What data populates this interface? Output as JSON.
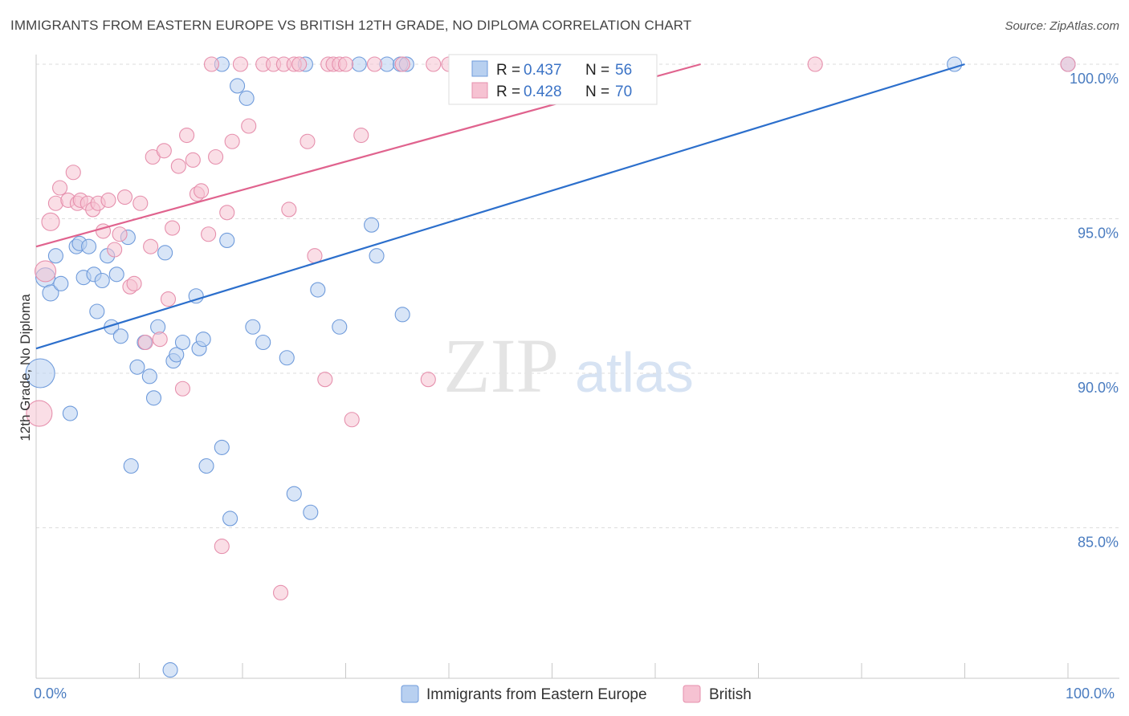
{
  "title": "IMMIGRANTS FROM EASTERN EUROPE VS BRITISH 12TH GRADE, NO DIPLOMA CORRELATION CHART",
  "source": "Source: ZipAtlas.com",
  "watermark": {
    "zip": "ZIP",
    "atlas": "atlas"
  },
  "colors": {
    "blue_fill": "#b8d0f0",
    "blue_stroke": "#6f9bdb",
    "blue_line": "#2c6fcc",
    "pink_fill": "#f6c2d2",
    "pink_stroke": "#e690ad",
    "pink_line": "#e0638e",
    "grid": "#dddddd",
    "tick_text": "#4a7cc0"
  },
  "stats": [
    {
      "r_label": "R =",
      "r_value": "0.437",
      "n_label": "N =",
      "n_value": "56"
    },
    {
      "r_label": "R =",
      "r_value": "0.428",
      "n_label": "N =",
      "n_value": "70"
    }
  ],
  "chart_data": {
    "type": "scatter",
    "title": "IMMIGRANTS FROM EASTERN EUROPE VS BRITISH 12TH GRADE, NO DIPLOMA CORRELATION CHART",
    "xlabel": "",
    "ylabel": "12th Grade, No Diploma",
    "xlim": [
      0,
      100
    ],
    "ylim": [
      80.3,
      100.8
    ],
    "x_tick_labels": [
      "0.0%",
      "100.0%"
    ],
    "y_ticks": [
      100,
      95,
      90,
      85
    ],
    "y_tick_labels": [
      "100.0%",
      "95.0%",
      "90.0%",
      "85.0%"
    ],
    "grid": true,
    "legend_position": "bottom",
    "series": [
      {
        "name": "Immigrants from Eastern Europe",
        "color": "#6f9bdb",
        "r": 0.437,
        "n": 56,
        "trend": {
          "x": [
            0,
            90.0
          ],
          "y": [
            90.8,
            100.0
          ]
        },
        "points": [
          [
            0.4,
            90.0,
            18
          ],
          [
            0.9,
            93.1,
            12
          ],
          [
            1.4,
            92.6,
            10
          ],
          [
            1.9,
            93.8,
            9
          ],
          [
            2.4,
            92.9,
            9
          ],
          [
            3.3,
            88.7,
            9
          ],
          [
            3.9,
            94.1,
            9
          ],
          [
            4.2,
            94.2,
            9
          ],
          [
            4.6,
            93.1,
            9
          ],
          [
            5.1,
            94.1,
            9
          ],
          [
            5.6,
            93.2,
            9
          ],
          [
            5.9,
            92.0,
            9
          ],
          [
            6.4,
            93.0,
            9
          ],
          [
            6.9,
            93.8,
            9
          ],
          [
            7.3,
            91.5,
            9
          ],
          [
            7.8,
            93.2,
            9
          ],
          [
            8.2,
            91.2,
            9
          ],
          [
            8.9,
            94.4,
            9
          ],
          [
            9.2,
            87.0,
            9
          ],
          [
            9.8,
            90.2,
            9
          ],
          [
            10.5,
            91.0,
            9
          ],
          [
            11.0,
            89.9,
            9
          ],
          [
            11.4,
            89.2,
            9
          ],
          [
            11.8,
            91.5,
            9
          ],
          [
            12.5,
            93.9,
            9
          ],
          [
            13.0,
            80.4,
            9
          ],
          [
            13.3,
            90.4,
            9
          ],
          [
            13.6,
            90.6,
            9
          ],
          [
            14.2,
            91.0,
            9
          ],
          [
            15.5,
            92.5,
            9
          ],
          [
            15.8,
            90.8,
            9
          ],
          [
            16.2,
            91.1,
            9
          ],
          [
            16.5,
            87.0,
            9
          ],
          [
            18.0,
            87.6,
            9
          ],
          [
            18.8,
            85.3,
            9
          ],
          [
            18.5,
            94.3,
            9
          ],
          [
            19.5,
            99.3,
            9
          ],
          [
            20.4,
            98.9,
            9
          ],
          [
            21.0,
            91.5,
            9
          ],
          [
            22.0,
            91.0,
            9
          ],
          [
            24.3,
            90.5,
            9
          ],
          [
            25.0,
            86.1,
            9
          ],
          [
            26.1,
            100.0,
            9
          ],
          [
            26.6,
            85.5,
            9
          ],
          [
            27.3,
            92.7,
            9
          ],
          [
            29.4,
            91.5,
            9
          ],
          [
            31.3,
            100.0,
            9
          ],
          [
            32.5,
            94.8,
            9
          ],
          [
            33.0,
            93.8,
            9
          ],
          [
            34.0,
            100.0,
            9
          ],
          [
            35.3,
            100.0,
            9
          ],
          [
            35.9,
            100.0,
            9
          ],
          [
            35.5,
            91.9,
            9
          ],
          [
            18.0,
            100.0,
            9
          ],
          [
            89.0,
            100.0,
            9
          ],
          [
            100.0,
            100.0,
            9
          ]
        ]
      },
      {
        "name": "British",
        "color": "#e690ad",
        "r": 0.428,
        "n": 70,
        "trend": {
          "x": [
            0,
            64.4
          ],
          "y": [
            94.1,
            100.0
          ]
        },
        "points": [
          [
            0.3,
            88.7,
            16
          ],
          [
            0.9,
            93.3,
            13
          ],
          [
            1.4,
            94.9,
            11
          ],
          [
            1.9,
            95.5,
            9
          ],
          [
            2.3,
            96.0,
            9
          ],
          [
            3.1,
            95.6,
            9
          ],
          [
            3.6,
            96.5,
            9
          ],
          [
            4.0,
            95.5,
            9
          ],
          [
            4.3,
            95.6,
            9
          ],
          [
            5.0,
            95.5,
            9
          ],
          [
            5.5,
            95.3,
            9
          ],
          [
            6.0,
            95.5,
            9
          ],
          [
            6.5,
            94.6,
            9
          ],
          [
            7.0,
            95.6,
            9
          ],
          [
            7.6,
            94.0,
            9
          ],
          [
            8.1,
            94.5,
            9
          ],
          [
            8.6,
            95.7,
            9
          ],
          [
            9.1,
            92.8,
            9
          ],
          [
            9.5,
            92.9,
            9
          ],
          [
            10.1,
            95.5,
            9
          ],
          [
            10.6,
            91.0,
            9
          ],
          [
            11.1,
            94.1,
            9
          ],
          [
            11.3,
            97.0,
            9
          ],
          [
            12.0,
            91.1,
            9
          ],
          [
            12.4,
            97.2,
            9
          ],
          [
            12.8,
            92.4,
            9
          ],
          [
            13.2,
            94.7,
            9
          ],
          [
            13.8,
            96.7,
            9
          ],
          [
            14.2,
            89.5,
            9
          ],
          [
            14.6,
            97.7,
            9
          ],
          [
            15.2,
            96.9,
            9
          ],
          [
            15.6,
            95.8,
            9
          ],
          [
            16.0,
            95.9,
            9
          ],
          [
            16.7,
            94.5,
            9
          ],
          [
            17.4,
            97.0,
            9
          ],
          [
            17.0,
            100.0,
            9
          ],
          [
            18.0,
            84.4,
            9
          ],
          [
            18.5,
            95.2,
            9
          ],
          [
            19.0,
            97.5,
            9
          ],
          [
            19.8,
            100.0,
            9
          ],
          [
            20.6,
            98.0,
            9
          ],
          [
            22.0,
            100.0,
            9
          ],
          [
            23.0,
            100.0,
            9
          ],
          [
            23.7,
            82.9,
            9
          ],
          [
            24.0,
            100.0,
            9
          ],
          [
            24.5,
            95.3,
            9
          ],
          [
            25.0,
            100.0,
            9
          ],
          [
            25.5,
            100.0,
            9
          ],
          [
            26.3,
            97.5,
            9
          ],
          [
            27.0,
            93.8,
            9
          ],
          [
            28.0,
            89.8,
            9
          ],
          [
            28.3,
            100.0,
            9
          ],
          [
            28.8,
            100.0,
            9
          ],
          [
            29.4,
            100.0,
            9
          ],
          [
            30.0,
            100.0,
            9
          ],
          [
            30.6,
            88.5,
            9
          ],
          [
            31.5,
            97.7,
            9
          ],
          [
            32.8,
            100.0,
            9
          ],
          [
            35.5,
            100.0,
            9
          ],
          [
            38.0,
            89.8,
            9
          ],
          [
            38.5,
            100.0,
            9
          ],
          [
            40.0,
            100.0,
            9
          ],
          [
            42.0,
            100.0,
            9
          ],
          [
            45.0,
            100.0,
            9
          ],
          [
            47.0,
            100.0,
            9
          ],
          [
            49.0,
            100.0,
            9
          ],
          [
            50.5,
            100.0,
            9
          ],
          [
            52.0,
            100.0,
            9
          ],
          [
            75.5,
            100.0,
            9
          ],
          [
            100.0,
            100.0,
            9
          ]
        ]
      }
    ]
  }
}
